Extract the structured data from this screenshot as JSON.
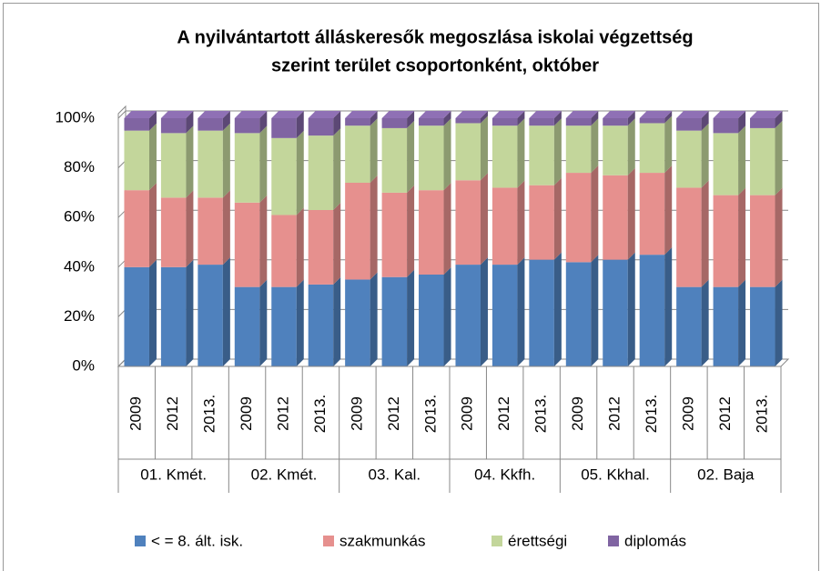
{
  "chart_data": {
    "type": "bar",
    "stacked": true,
    "title": [
      "A nyilvántartott álláskeresők megoszlása iskolai végzettség",
      "szerint terület csoportonként, október"
    ],
    "categories": [
      "2009",
      "2012",
      "2013.",
      "2009",
      "2012",
      "2013.",
      "2009",
      "2012",
      "2013.",
      "2009",
      "2012",
      "2013.",
      "2009",
      "2012",
      "2013.",
      "2009",
      "2012",
      "2013."
    ],
    "groups": [
      "01. Kmét.",
      "02. Kmét.",
      "03. Kal.",
      "04. Kkfh.",
      "05. Kkhal.",
      "02. Baja"
    ],
    "series": [
      {
        "name": "< = 8. ált. isk.",
        "color": "#4f81bd",
        "values": [
          40,
          40,
          41,
          32,
          32,
          33,
          35,
          36,
          37,
          41,
          41,
          43,
          42,
          43,
          45,
          32,
          32,
          32
        ]
      },
      {
        "name": "szakmunkás",
        "color": "#e6908e",
        "values": [
          31,
          28,
          27,
          34,
          29,
          30,
          39,
          34,
          34,
          34,
          31,
          30,
          36,
          34,
          33,
          40,
          37,
          37
        ]
      },
      {
        "name": "érettségi",
        "color": "#c3d69b",
        "values": [
          24,
          26,
          27,
          28,
          31,
          30,
          23,
          26,
          26,
          23,
          25,
          24,
          19,
          20,
          20,
          23,
          25,
          27
        ]
      },
      {
        "name": "diplomás",
        "color": "#8064a2",
        "values": [
          5,
          6,
          5,
          6,
          8,
          7,
          3,
          4,
          3,
          2,
          3,
          3,
          3,
          3,
          2,
          5,
          6,
          4
        ]
      }
    ],
    "ylim": [
      0,
      100
    ],
    "yticks": [
      {
        "value": 0,
        "label": "0%"
      },
      {
        "value": 20,
        "label": "20%"
      },
      {
        "value": 40,
        "label": "40%"
      },
      {
        "value": 60,
        "label": "60%"
      },
      {
        "value": 80,
        "label": "80%"
      },
      {
        "value": 100,
        "label": "100%"
      }
    ],
    "grid": true,
    "legend": "bottom"
  }
}
